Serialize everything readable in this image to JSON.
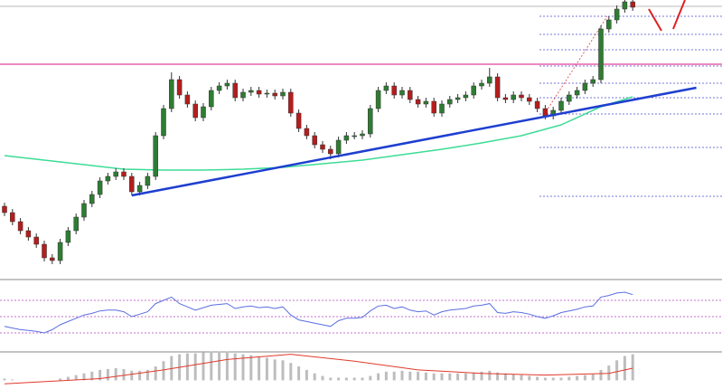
{
  "chart_data": {
    "type": "candlestick",
    "open": [
      80,
      73,
      63,
      53,
      46,
      38,
      23,
      20,
      40,
      53,
      68,
      83,
      93,
      108,
      113,
      118,
      113,
      96,
      103,
      113,
      158,
      188,
      220,
      203,
      193,
      178,
      190,
      208,
      213,
      216,
      200,
      206,
      208,
      204,
      205,
      202,
      206,
      183,
      166,
      158,
      148,
      143,
      138,
      153,
      158,
      158,
      160,
      188,
      208,
      213,
      203,
      208,
      198,
      193,
      196,
      183,
      193,
      198,
      200,
      203,
      213,
      216,
      223,
      200,
      198,
      203,
      200,
      196,
      188,
      180,
      186,
      196,
      203,
      208,
      216,
      220,
      276,
      286,
      298,
      306
    ],
    "high": [
      84,
      77,
      67,
      57,
      50,
      42,
      27,
      44,
      57,
      72,
      87,
      97,
      112,
      117,
      122,
      122,
      117,
      107,
      117,
      162,
      192,
      228,
      224,
      207,
      197,
      194,
      212,
      217,
      220,
      220,
      210,
      212,
      212,
      209,
      209,
      210,
      210,
      187,
      170,
      162,
      152,
      147,
      157,
      162,
      162,
      164,
      192,
      212,
      217,
      217,
      212,
      212,
      202,
      200,
      200,
      197,
      202,
      204,
      207,
      217,
      220,
      233,
      227,
      204,
      207,
      207,
      204,
      200,
      192,
      190,
      200,
      207,
      212,
      220,
      224,
      280,
      290,
      302,
      310,
      310
    ],
    "low": [
      69,
      59,
      49,
      42,
      34,
      19,
      16,
      16,
      36,
      49,
      64,
      79,
      89,
      104,
      109,
      109,
      92,
      92,
      99,
      109,
      154,
      184,
      199,
      189,
      174,
      174,
      186,
      204,
      209,
      196,
      196,
      202,
      200,
      200,
      198,
      198,
      179,
      162,
      154,
      144,
      139,
      132,
      134,
      149,
      154,
      154,
      156,
      184,
      204,
      199,
      199,
      194,
      189,
      189,
      179,
      179,
      189,
      194,
      196,
      199,
      209,
      212,
      196,
      194,
      194,
      196,
      192,
      184,
      176,
      176,
      182,
      192,
      199,
      204,
      212,
      216,
      272,
      282,
      294,
      296
    ],
    "close": [
      73,
      63,
      53,
      46,
      38,
      23,
      20,
      40,
      53,
      68,
      83,
      93,
      108,
      113,
      118,
      113,
      96,
      103,
      113,
      158,
      188,
      220,
      203,
      193,
      178,
      190,
      208,
      213,
      216,
      200,
      206,
      208,
      204,
      205,
      202,
      206,
      183,
      166,
      158,
      148,
      143,
      138,
      153,
      158,
      158,
      160,
      188,
      208,
      213,
      203,
      208,
      198,
      193,
      196,
      183,
      193,
      198,
      200,
      203,
      213,
      216,
      223,
      200,
      198,
      203,
      200,
      196,
      188,
      180,
      186,
      196,
      203,
      208,
      216,
      220,
      276,
      286,
      298,
      306,
      300
    ],
    "ylim": [
      -4,
      312
    ],
    "up_color": "#2e7d32",
    "down_color": "#b71c1c",
    "moving_average": {
      "index": [
        0,
        5,
        10,
        15,
        20,
        25,
        30,
        35,
        40,
        45,
        50,
        55,
        60,
        65,
        70,
        75,
        79
      ],
      "values": [
        136,
        131,
        126,
        121,
        120,
        120,
        121,
        123,
        127,
        131,
        137,
        143,
        150,
        158,
        170,
        190,
        201
      ],
      "color": "#3ddc97"
    },
    "resistance": {
      "value": 237,
      "color": "#e0409a"
    },
    "trend_line": {
      "index": [
        16,
        87
      ],
      "values": [
        92,
        211
      ],
      "color": "#1e3fd0"
    },
    "levels": [
      290,
      270,
      253,
      235,
      216,
      200,
      182,
      145,
      91
    ],
    "levels_color": "#4b4bd0",
    "rsi": {
      "values": [
        38,
        36,
        34,
        33,
        32,
        30,
        34,
        40,
        44,
        48,
        52,
        54,
        57,
        58,
        58,
        56,
        50,
        53,
        56,
        66,
        70,
        74,
        66,
        62,
        58,
        61,
        64,
        65,
        66,
        60,
        62,
        63,
        61,
        62,
        60,
        62,
        52,
        46,
        44,
        42,
        40,
        38,
        45,
        48,
        48,
        49,
        57,
        63,
        64,
        60,
        62,
        58,
        56,
        57,
        52,
        56,
        58,
        59,
        60,
        63,
        64,
        66,
        55,
        54,
        56,
        55,
        53,
        50,
        48,
        51,
        55,
        57,
        59,
        62,
        63,
        74,
        76,
        79,
        80,
        77
      ],
      "ylim": [
        0,
        100
      ],
      "levels": [
        30,
        50,
        70
      ],
      "color": "#5a6ee0"
    },
    "macd": {
      "histogram": [
        2,
        1,
        0,
        0,
        0,
        0,
        0,
        2,
        4,
        6,
        8,
        10,
        12,
        13,
        14,
        13,
        11,
        11,
        12,
        16,
        22,
        28,
        30,
        31,
        31,
        32,
        33,
        33,
        33,
        31,
        30,
        29,
        27,
        26,
        24,
        23,
        20,
        16,
        12,
        8,
        5,
        3,
        3,
        3,
        3,
        3,
        5,
        8,
        10,
        10,
        11,
        10,
        10,
        9,
        8,
        8,
        8,
        8,
        8,
        9,
        10,
        11,
        9,
        8,
        7,
        6,
        5,
        4,
        3,
        3,
        3,
        4,
        5,
        6,
        7,
        12,
        17,
        23,
        28,
        30
      ],
      "signal": {
        "index": [
          0,
          12,
          20,
          28,
          36,
          44,
          52,
          60,
          68,
          76,
          79
        ],
        "values": [
          -4,
          2,
          12,
          24,
          30,
          22,
          12,
          8,
          6,
          8,
          14
        ]
      },
      "ylim": [
        -10,
        40
      ],
      "color": "#bdbdbd",
      "signal_color": "#e0392b"
    }
  }
}
